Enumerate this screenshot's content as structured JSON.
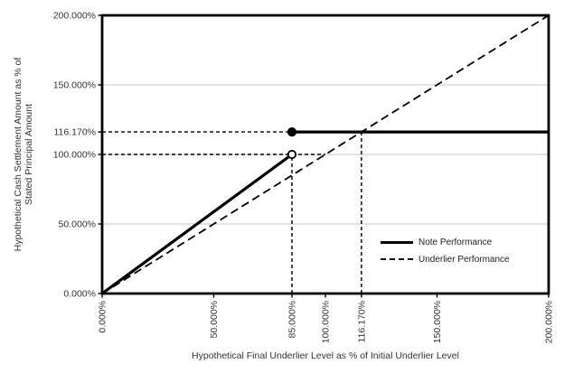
{
  "chart_data": {
    "type": "line",
    "title": "",
    "xlabel": "Hypothetical Final Underlier Level as % of Initial Underlier Level",
    "ylabel": "Hypothetical Cash Settlement Amount as % of Stated Principal Amount",
    "ylabel_lines": [
      "Hypothetical Cash Settlement Amount as % of",
      "Stated Principal Amount"
    ],
    "xlim": [
      0,
      200
    ],
    "ylim": [
      0,
      200
    ],
    "grid": "horizontal-only",
    "gridlines_y": [
      50,
      100,
      150
    ],
    "x_ticks": [
      {
        "value": 0,
        "label": "0.000%"
      },
      {
        "value": 50,
        "label": "50.000%"
      },
      {
        "value": 85,
        "label": "85.000%"
      },
      {
        "value": 100,
        "label": "100.000%"
      },
      {
        "value": 116.17,
        "label": "116.170%"
      },
      {
        "value": 150,
        "label": "150.000%"
      },
      {
        "value": 200,
        "label": "200.000%"
      }
    ],
    "y_ticks": [
      {
        "value": 0,
        "label": "0.000%"
      },
      {
        "value": 50,
        "label": "50.000%"
      },
      {
        "value": 100,
        "label": "100.000%"
      },
      {
        "value": 116.17,
        "label": "116.170%"
      },
      {
        "value": 150,
        "label": "150.000%"
      },
      {
        "value": 200,
        "label": "200.000%"
      }
    ],
    "series": [
      {
        "name": "Note Performance",
        "line_style": "solid",
        "width": 3.2,
        "segments": [
          [
            [
              0,
              0
            ],
            [
              85,
              100
            ]
          ],
          [
            [
              85,
              116.17
            ],
            [
              200,
              116.17
            ]
          ]
        ]
      },
      {
        "name": "Underlier Performance",
        "line_style": "dashed",
        "dash": "9,5",
        "width": 1.8,
        "segments": [
          [
            [
              0,
              0
            ],
            [
              200,
              200
            ]
          ]
        ]
      }
    ],
    "markers": [
      {
        "x": 85,
        "y": 100,
        "style": "open"
      },
      {
        "x": 85,
        "y": 116.17,
        "style": "filled"
      }
    ],
    "guides": [
      {
        "axis": "y",
        "value": 116.17,
        "from": 0,
        "to": 85
      },
      {
        "axis": "y",
        "value": 100,
        "from": 0,
        "to": 100
      },
      {
        "axis": "x",
        "value": 85,
        "from": 0,
        "to": 100
      },
      {
        "axis": "x",
        "value": 116.17,
        "from": 0,
        "to": 116.17
      }
    ],
    "legend": {
      "position": "inside-bottom-right",
      "items": [
        {
          "label": "Note Performance",
          "line_style": "solid"
        },
        {
          "label": "Underlier Performance",
          "line_style": "dashed"
        }
      ]
    },
    "colors": {
      "line": "#000000",
      "gridline": "#c6c6c6",
      "text": "#333333",
      "background": "#ffffff"
    }
  }
}
